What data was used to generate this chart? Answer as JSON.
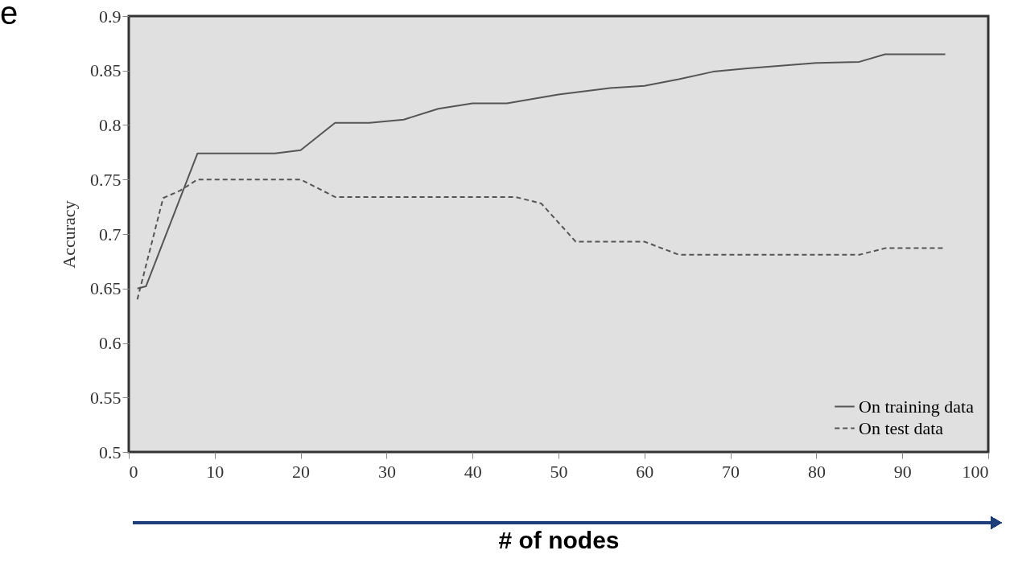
{
  "chart_data": {
    "type": "line",
    "xlabel": "# of nodes",
    "ylabel": "Accuracy",
    "annotations": [
      "e"
    ],
    "xlim": [
      0,
      100
    ],
    "xticks": [
      0,
      10,
      20,
      30,
      40,
      50,
      60,
      70,
      80,
      90,
      100
    ],
    "ylim": [
      0.5,
      0.9
    ],
    "yticks": [
      0.5,
      0.55,
      0.6,
      0.65,
      0.7,
      0.75,
      0.8,
      0.85,
      0.9
    ],
    "grid": false,
    "legend": "bottom right",
    "marker": "none",
    "series": [
      {
        "name": "On training data",
        "color": "#555555",
        "line_style": "solid",
        "x": [
          1,
          2,
          8,
          17,
          20,
          24,
          28,
          32,
          36,
          40,
          44,
          50,
          56,
          60,
          64,
          68,
          72,
          80,
          85,
          88,
          95
        ],
        "values": [
          0.65,
          0.652,
          0.774,
          0.774,
          0.777,
          0.802,
          0.802,
          0.805,
          0.815,
          0.82,
          0.82,
          0.828,
          0.834,
          0.836,
          0.842,
          0.849,
          0.852,
          0.857,
          0.858,
          0.865,
          0.865
        ]
      },
      {
        "name": "On test data",
        "color": "#555555",
        "line_style": "dashed",
        "x": [
          1,
          4,
          6,
          8,
          20,
          24,
          45,
          48,
          52,
          60,
          64,
          85,
          88,
          95
        ],
        "values": [
          0.64,
          0.733,
          0.74,
          0.75,
          0.75,
          0.734,
          0.734,
          0.728,
          0.693,
          0.693,
          0.681,
          0.681,
          0.687,
          0.687
        ]
      }
    ]
  }
}
